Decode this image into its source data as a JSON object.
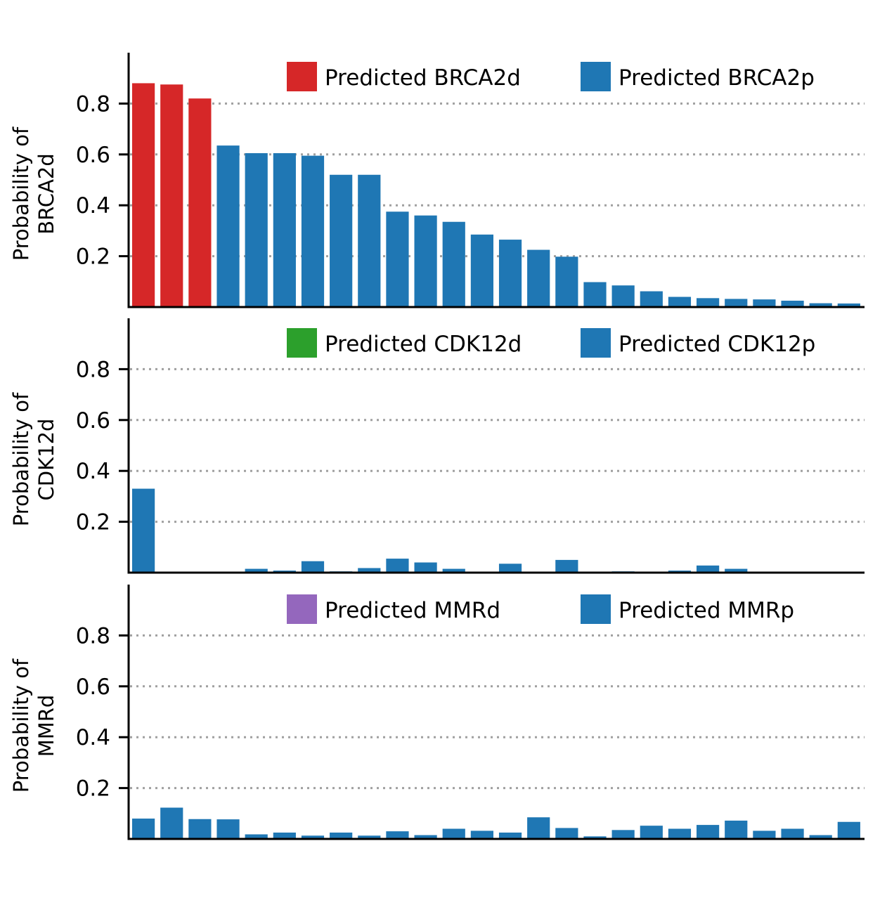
{
  "colors": {
    "brca2d": "#d62728",
    "cdk12d": "#2ca02c",
    "mmrd": "#9467bd",
    "proficient": "#1f77b4",
    "grid": "#a0a0a0",
    "axis": "#000000"
  },
  "chart_data": [
    {
      "type": "bar",
      "ylabel_line1": "Probability of",
      "ylabel_line2": "BRCA2d",
      "ylim": [
        0,
        1.0
      ],
      "yticks": [
        "0.2",
        "0.4",
        "0.6",
        "0.8"
      ],
      "grid": "horizontal dotted",
      "legend_placement": "top-right",
      "legend": [
        {
          "label": "Predicted BRCA2d",
          "color": "#d62728"
        },
        {
          "label": "Predicted BRCA2p",
          "color": "#1f77b4"
        }
      ],
      "values": [
        0.88,
        0.875,
        0.82,
        0.635,
        0.605,
        0.605,
        0.595,
        0.52,
        0.52,
        0.375,
        0.36,
        0.335,
        0.285,
        0.265,
        0.225,
        0.198,
        0.098,
        0.085,
        0.062,
        0.04,
        0.035,
        0.032,
        0.03,
        0.025,
        0.015,
        0.014
      ],
      "positive_count": 3
    },
    {
      "type": "bar",
      "ylabel_line1": "Probability of",
      "ylabel_line2": "CDK12d",
      "ylim": [
        0,
        1.0
      ],
      "yticks": [
        "0.2",
        "0.4",
        "0.6",
        "0.8"
      ],
      "grid": "horizontal dotted",
      "legend_placement": "top-right",
      "legend": [
        {
          "label": "Predicted CDK12d",
          "color": "#2ca02c"
        },
        {
          "label": "Predicted CDK12p",
          "color": "#1f77b4"
        }
      ],
      "values": [
        0.33,
        0.003,
        0.003,
        0.003,
        0.015,
        0.008,
        0.045,
        0.005,
        0.018,
        0.055,
        0.04,
        0.015,
        0.003,
        0.035,
        0.003,
        0.05,
        0.003,
        0.005,
        0.003,
        0.008,
        0.028,
        0.015,
        0.003,
        0.003,
        0.003,
        0.003
      ],
      "positive_count": 0
    },
    {
      "type": "bar",
      "ylabel_line1": "Probability of",
      "ylabel_line2": "MMRd",
      "ylim": [
        0,
        1.0
      ],
      "yticks": [
        "0.2",
        "0.4",
        "0.6",
        "0.8"
      ],
      "grid": "horizontal dotted",
      "legend_placement": "top-right",
      "legend": [
        {
          "label": "Predicted MMRd",
          "color": "#9467bd"
        },
        {
          "label": "Predicted MMRp",
          "color": "#1f77b4"
        }
      ],
      "values": [
        0.08,
        0.123,
        0.078,
        0.077,
        0.018,
        0.025,
        0.013,
        0.025,
        0.013,
        0.03,
        0.015,
        0.04,
        0.032,
        0.025,
        0.085,
        0.043,
        0.01,
        0.035,
        0.052,
        0.04,
        0.055,
        0.072,
        0.032,
        0.04,
        0.015,
        0.067
      ],
      "positive_count": 0
    }
  ]
}
